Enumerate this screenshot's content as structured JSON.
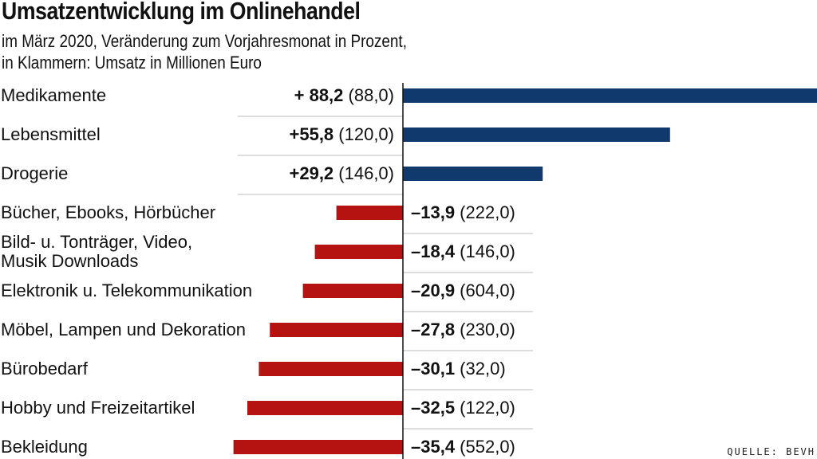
{
  "title": "Umsatzentwicklung im Onlinehandel",
  "subtitle_line1": "im März 2020, Veränderung zum Vorjahresmonat in Prozent,",
  "subtitle_line2": "in Klammern: Umsatz in Millionen Euro",
  "source": "QUELLE: BEVH",
  "colors": {
    "positive": "#103a6e",
    "negative": "#b51212",
    "text": "#111111",
    "divider": "#bbbbbb"
  },
  "chart_data": {
    "type": "bar",
    "orientation": "horizontal",
    "title": "Umsatzentwicklung im Onlinehandel",
    "unit": "Veränderung zum Vorjahresmonat in Prozent",
    "categories": [
      "Medikamente",
      "Lebensmittel",
      "Drogerie",
      "Bücher, Ebooks, Hörbücher",
      "Bild- u. Tonträger, Video,\nMusik Downloads",
      "Elektronik u. Telekommunikation",
      "Möbel, Lampen und Dekoration",
      "Bürobedarf",
      "Hobby und Freizeitartikel",
      "Bekleidung"
    ],
    "values": [
      88.2,
      55.8,
      29.2,
      -13.9,
      -18.4,
      -20.9,
      -27.8,
      -30.1,
      -32.5,
      -35.4
    ],
    "value_labels": [
      "+ 88,2",
      "+55,8",
      "+29,2",
      "–13,9",
      "–18,4",
      "–20,9",
      "–27,8",
      "–30,1",
      "–32,5",
      "–35,4"
    ],
    "revenue_labels": [
      "(88,0)",
      "(120,0)",
      "(146,0)",
      "(222,0)",
      "(146,0)",
      "(604,0)",
      "(230,0)",
      "(32,0)",
      "(122,0)",
      "(552,0)"
    ],
    "revenue_mio_eur": [
      88.0,
      120.0,
      146.0,
      222.0,
      146.0,
      604.0,
      230.0,
      32.0,
      122.0,
      552.0
    ]
  }
}
